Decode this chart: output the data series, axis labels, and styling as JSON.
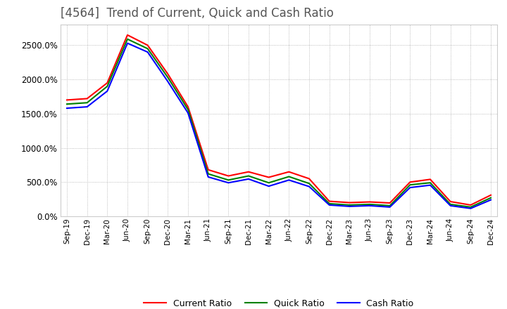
{
  "title": "[4564]  Trend of Current, Quick and Cash Ratio",
  "title_fontsize": 12,
  "background_color": "#ffffff",
  "grid_color": "#aaaaaa",
  "x_labels": [
    "Sep-19",
    "Dec-19",
    "Mar-20",
    "Jun-20",
    "Sep-20",
    "Dec-20",
    "Mar-21",
    "Jun-21",
    "Sep-21",
    "Dec-21",
    "Mar-22",
    "Jun-22",
    "Sep-22",
    "Dec-22",
    "Mar-23",
    "Jun-23",
    "Sep-23",
    "Dec-23",
    "Mar-24",
    "Jun-24",
    "Sep-24",
    "Dec-24"
  ],
  "current_ratio": [
    1700,
    1720,
    1950,
    2650,
    2500,
    2080,
    1600,
    680,
    590,
    650,
    570,
    650,
    550,
    220,
    200,
    210,
    195,
    500,
    540,
    215,
    165,
    310
  ],
  "quick_ratio": [
    1640,
    1660,
    1900,
    2590,
    2450,
    2030,
    1560,
    620,
    530,
    590,
    490,
    580,
    480,
    185,
    165,
    175,
    155,
    460,
    490,
    175,
    135,
    270
  ],
  "cash_ratio": [
    1580,
    1600,
    1830,
    2530,
    2400,
    1970,
    1510,
    575,
    490,
    545,
    440,
    530,
    435,
    165,
    145,
    155,
    135,
    420,
    455,
    155,
    115,
    240
  ],
  "current_color": "#ff0000",
  "quick_color": "#008000",
  "cash_color": "#0000ff",
  "ylim_min": 0,
  "ylim_max": 2800,
  "ytick_interval": 500,
  "legend_labels": [
    "Current Ratio",
    "Quick Ratio",
    "Cash Ratio"
  ]
}
